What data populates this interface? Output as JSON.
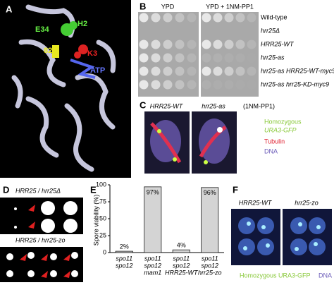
{
  "panels": {
    "a": {
      "label": "A",
      "annotations": [
        "E34",
        "H2",
        "82",
        "K3",
        "ATP"
      ]
    },
    "b": {
      "label": "B",
      "conditions": [
        "YPD",
        "YPD + 1NM-PP1"
      ],
      "strains": [
        "Wild-type",
        "hrr25Δ",
        "HRR25-WT",
        "hrr25-as",
        "hrr25-as HRR25-WT-myc9",
        "hrr25-as hrr25-KD-myc9"
      ]
    },
    "c": {
      "label": "C",
      "images": [
        "HRR25-WT",
        "hrr25-as"
      ],
      "treatment": "(1NM-PP1)",
      "legend": [
        "Homozygous",
        "URA3-GFP",
        "Tubulin",
        "DNA"
      ]
    },
    "d": {
      "label": "D",
      "rows": [
        "HRR25 / hrr25Δ",
        "HRR25 / hrr25-zo"
      ]
    },
    "e": {
      "label": "E"
    },
    "f": {
      "label": "F",
      "images": [
        "HRR25-WT",
        "hrr25-zo"
      ],
      "legend": [
        "Homozygous URA3-GFP",
        "DNA"
      ]
    }
  },
  "chart_data": {
    "type": "bar",
    "y_label": "Spore viability (%)",
    "categories": [
      [
        "spo11",
        "spo12"
      ],
      [
        "spo11",
        "spo12",
        "mam1"
      ],
      [
        "spo11",
        "spo12",
        "HRR25-WT"
      ],
      [
        "spo11",
        "spo12",
        "hrr25-zo"
      ]
    ],
    "values": [
      2,
      97,
      4,
      96
    ],
    "value_labels": [
      "2%",
      "97%",
      "4%",
      "96%"
    ],
    "color": "#d4d4d4",
    "ylim": [
      0,
      100
    ],
    "yticks": [
      0,
      25,
      50,
      75,
      100
    ]
  }
}
